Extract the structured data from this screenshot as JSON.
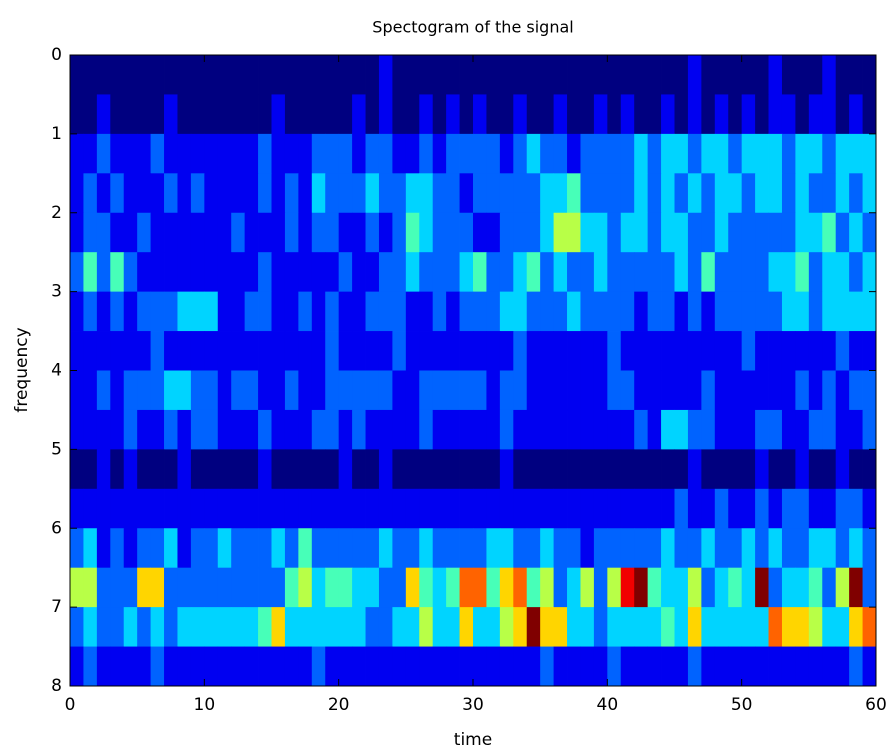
{
  "chart_data": {
    "type": "heatmap",
    "title": "Spectogram of the signal",
    "xlabel": "time",
    "ylabel": "frequency",
    "colormap": "jet",
    "y_reversed": true,
    "xlim": [
      0,
      60
    ],
    "ylim": [
      0,
      8
    ],
    "xticks": [
      0,
      10,
      20,
      30,
      40,
      50,
      60
    ],
    "yticks": [
      0,
      1,
      2,
      3,
      4,
      5,
      6,
      7,
      8
    ],
    "z": [
      [
        0,
        0,
        0,
        0,
        0,
        0,
        0,
        0,
        0,
        0,
        0,
        0,
        0,
        0,
        0,
        0,
        0,
        0,
        0,
        0,
        0,
        0,
        0,
        1,
        0,
        0,
        0,
        0,
        0,
        0,
        0,
        0,
        0,
        0,
        0,
        0,
        0,
        0,
        0,
        0,
        0,
        0,
        0,
        0,
        0,
        0,
        1,
        0,
        0,
        0,
        0,
        0,
        1,
        0,
        0,
        0,
        1,
        0,
        0,
        0
      ],
      [
        0,
        0,
        1,
        0,
        0,
        0,
        0,
        1,
        0,
        0,
        0,
        0,
        0,
        0,
        0,
        1,
        0,
        0,
        0,
        0,
        0,
        1,
        0,
        1,
        0,
        0,
        1,
        0,
        1,
        0,
        1,
        0,
        0,
        1,
        0,
        0,
        1,
        0,
        0,
        1,
        0,
        1,
        0,
        0,
        1,
        0,
        1,
        0,
        1,
        0,
        1,
        0,
        1,
        1,
        0,
        1,
        1,
        0,
        1,
        0
      ],
      [
        1,
        1,
        2,
        1,
        1,
        1,
        2,
        1,
        1,
        1,
        1,
        1,
        1,
        1,
        2,
        1,
        1,
        1,
        2,
        2,
        2,
        1,
        2,
        2,
        1,
        1,
        2,
        1,
        2,
        2,
        2,
        2,
        1,
        2,
        3,
        2,
        2,
        1,
        2,
        2,
        2,
        2,
        3,
        2,
        3,
        3,
        2,
        3,
        3,
        2,
        3,
        3,
        3,
        2,
        3,
        3,
        2,
        3,
        3,
        3
      ],
      [
        1,
        2,
        1,
        2,
        1,
        1,
        1,
        2,
        1,
        2,
        1,
        1,
        1,
        1,
        2,
        1,
        2,
        1,
        3,
        2,
        2,
        2,
        3,
        2,
        2,
        3,
        3,
        2,
        2,
        1,
        2,
        2,
        2,
        2,
        2,
        3,
        3,
        4,
        2,
        2,
        2,
        2,
        3,
        2,
        3,
        2,
        3,
        2,
        3,
        3,
        2,
        3,
        3,
        2,
        3,
        2,
        2,
        3,
        2,
        3
      ],
      [
        1,
        2,
        2,
        1,
        1,
        2,
        1,
        1,
        1,
        1,
        1,
        1,
        2,
        1,
        1,
        1,
        2,
        1,
        2,
        2,
        1,
        1,
        2,
        1,
        2,
        4,
        3,
        2,
        2,
        2,
        1,
        1,
        2,
        2,
        2,
        3,
        5,
        5,
        3,
        3,
        2,
        3,
        3,
        2,
        3,
        3,
        2,
        2,
        3,
        2,
        2,
        2,
        2,
        2,
        3,
        3,
        4,
        2,
        3,
        2
      ],
      [
        2,
        4,
        2,
        4,
        2,
        1,
        1,
        1,
        1,
        1,
        1,
        1,
        1,
        1,
        2,
        1,
        1,
        1,
        1,
        1,
        2,
        1,
        1,
        2,
        2,
        3,
        2,
        2,
        2,
        3,
        4,
        2,
        2,
        3,
        4,
        2,
        3,
        2,
        2,
        3,
        2,
        2,
        2,
        2,
        2,
        3,
        2,
        4,
        2,
        2,
        2,
        2,
        3,
        3,
        4,
        2,
        3,
        3,
        2,
        3
      ],
      [
        1,
        2,
        1,
        2,
        1,
        2,
        2,
        2,
        3,
        3,
        3,
        1,
        1,
        2,
        2,
        1,
        1,
        2,
        1,
        2,
        1,
        1,
        2,
        2,
        2,
        1,
        1,
        2,
        1,
        2,
        2,
        2,
        3,
        3,
        2,
        2,
        2,
        3,
        2,
        2,
        2,
        2,
        1,
        2,
        2,
        1,
        2,
        1,
        2,
        2,
        2,
        2,
        2,
        3,
        3,
        2,
        3,
        3,
        3,
        3
      ],
      [
        1,
        1,
        1,
        1,
        1,
        1,
        2,
        1,
        1,
        1,
        1,
        1,
        1,
        1,
        1,
        1,
        1,
        1,
        1,
        2,
        1,
        1,
        1,
        1,
        2,
        1,
        1,
        1,
        1,
        1,
        1,
        1,
        1,
        2,
        1,
        1,
        1,
        1,
        1,
        1,
        2,
        1,
        1,
        1,
        1,
        1,
        1,
        1,
        1,
        1,
        2,
        1,
        1,
        1,
        1,
        1,
        1,
        2,
        1,
        1
      ],
      [
        1,
        1,
        2,
        1,
        2,
        2,
        2,
        3,
        3,
        2,
        2,
        1,
        2,
        2,
        1,
        1,
        2,
        1,
        1,
        2,
        2,
        2,
        2,
        2,
        1,
        1,
        2,
        2,
        2,
        2,
        2,
        1,
        2,
        2,
        1,
        1,
        1,
        1,
        1,
        1,
        2,
        2,
        1,
        1,
        1,
        1,
        1,
        2,
        1,
        1,
        1,
        1,
        1,
        1,
        2,
        1,
        2,
        1,
        2,
        2
      ],
      [
        1,
        1,
        1,
        1,
        2,
        1,
        1,
        2,
        1,
        2,
        2,
        1,
        1,
        1,
        2,
        1,
        1,
        1,
        2,
        2,
        1,
        2,
        1,
        1,
        1,
        1,
        2,
        1,
        1,
        1,
        1,
        1,
        2,
        1,
        1,
        1,
        1,
        1,
        1,
        1,
        1,
        1,
        2,
        1,
        3,
        3,
        2,
        2,
        1,
        1,
        1,
        2,
        2,
        1,
        1,
        2,
        2,
        1,
        1,
        2
      ],
      [
        0,
        0,
        1,
        0,
        1,
        0,
        0,
        0,
        1,
        0,
        0,
        0,
        0,
        0,
        1,
        0,
        0,
        0,
        0,
        0,
        1,
        0,
        0,
        1,
        0,
        0,
        0,
        0,
        0,
        0,
        0,
        0,
        1,
        0,
        0,
        0,
        0,
        0,
        0,
        0,
        0,
        0,
        0,
        0,
        0,
        0,
        1,
        0,
        0,
        0,
        0,
        1,
        0,
        0,
        1,
        0,
        0,
        1,
        0,
        0
      ],
      [
        1,
        1,
        1,
        1,
        1,
        1,
        1,
        1,
        1,
        1,
        1,
        1,
        1,
        1,
        1,
        1,
        1,
        1,
        1,
        1,
        1,
        1,
        1,
        1,
        1,
        1,
        1,
        1,
        1,
        1,
        1,
        1,
        1,
        1,
        1,
        1,
        1,
        1,
        1,
        1,
        1,
        1,
        1,
        1,
        1,
        2,
        1,
        1,
        2,
        1,
        1,
        2,
        1,
        2,
        2,
        1,
        1,
        2,
        2,
        1
      ],
      [
        2,
        3,
        1,
        2,
        1,
        2,
        2,
        3,
        1,
        2,
        2,
        3,
        2,
        2,
        2,
        3,
        2,
        4,
        2,
        2,
        2,
        2,
        2,
        3,
        2,
        2,
        3,
        2,
        2,
        2,
        2,
        3,
        3,
        2,
        2,
        3,
        2,
        2,
        1,
        2,
        2,
        2,
        2,
        2,
        3,
        2,
        2,
        3,
        2,
        2,
        3,
        2,
        3,
        2,
        2,
        3,
        3,
        2,
        3,
        2
      ],
      [
        5,
        5,
        2,
        2,
        2,
        6,
        6,
        2,
        2,
        2,
        2,
        2,
        2,
        2,
        2,
        2,
        4,
        5,
        3,
        4,
        4,
        3,
        3,
        2,
        2,
        6,
        4,
        3,
        4,
        7,
        7,
        4,
        6,
        7,
        4,
        5,
        2,
        3,
        5,
        2,
        5,
        8,
        9,
        4,
        3,
        3,
        5,
        2,
        3,
        4,
        3,
        9,
        2,
        3,
        3,
        4,
        2,
        5,
        9,
        2
      ],
      [
        2,
        3,
        2,
        2,
        3,
        2,
        3,
        2,
        3,
        3,
        3,
        3,
        3,
        3,
        4,
        6,
        3,
        3,
        3,
        3,
        3,
        3,
        2,
        2,
        3,
        3,
        5,
        3,
        3,
        6,
        3,
        3,
        5,
        6,
        9,
        6,
        6,
        3,
        3,
        2,
        3,
        3,
        3,
        3,
        4,
        3,
        6,
        3,
        3,
        3,
        3,
        3,
        7,
        6,
        6,
        5,
        3,
        3,
        6,
        7
      ],
      [
        1,
        2,
        1,
        1,
        1,
        1,
        2,
        1,
        1,
        1,
        1,
        1,
        1,
        1,
        1,
        1,
        1,
        1,
        2,
        1,
        1,
        1,
        1,
        1,
        1,
        1,
        1,
        1,
        1,
        1,
        1,
        1,
        1,
        1,
        1,
        2,
        1,
        1,
        1,
        1,
        2,
        1,
        1,
        1,
        1,
        1,
        2,
        1,
        1,
        1,
        1,
        1,
        1,
        1,
        1,
        1,
        1,
        1,
        2,
        1
      ]
    ]
  }
}
